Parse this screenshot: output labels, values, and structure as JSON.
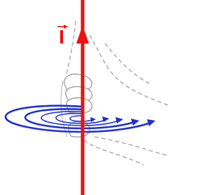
{
  "labels": {
    "current": "I"
  }
}
